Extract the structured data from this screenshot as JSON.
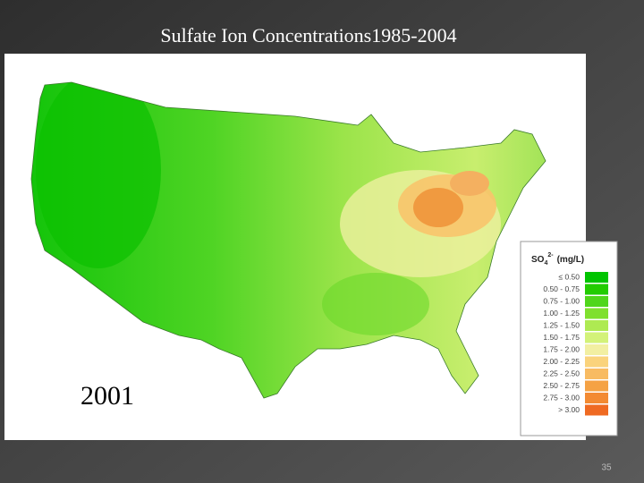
{
  "slide": {
    "title": "Sulfate Ion Concentrations1985-2004",
    "page_number": "35"
  },
  "map": {
    "year": "2001",
    "legend": {
      "title_parts": [
        "SO",
        "4",
        "2-",
        "(mg/L)"
      ],
      "entries": [
        {
          "label": "≤ 0.50",
          "color": "#00c400"
        },
        {
          "label": "0.50 - 0.75",
          "color": "#22cc00"
        },
        {
          "label": "0.75 - 1.00",
          "color": "#4fd61a"
        },
        {
          "label": "1.00 - 1.25",
          "color": "#7fe02e"
        },
        {
          "label": "1.25 - 1.50",
          "color": "#aeea52"
        },
        {
          "label": "1.50 - 1.75",
          "color": "#d3f279"
        },
        {
          "label": "1.75 - 2.00",
          "color": "#f2efa2"
        },
        {
          "label": "2.00 - 2.25",
          "color": "#fad37c"
        },
        {
          "label": "2.25 - 2.50",
          "color": "#f8bb62"
        },
        {
          "label": "2.50 - 2.75",
          "color": "#f5a244"
        },
        {
          "label": "2.75 - 3.00",
          "color": "#f38a32"
        },
        {
          "label": "> 3.00",
          "color": "#ef6a22"
        }
      ]
    }
  }
}
